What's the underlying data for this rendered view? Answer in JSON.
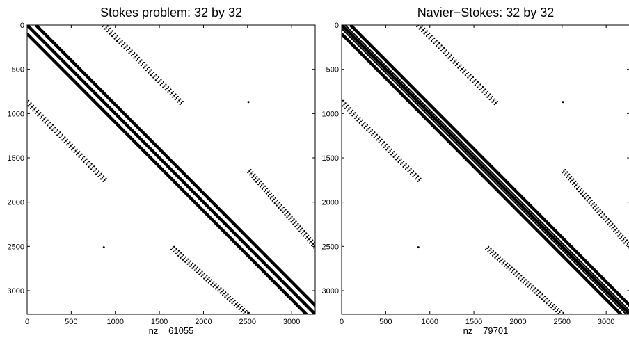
{
  "figure": {
    "background": "#ffffff",
    "mark_color": "#000000",
    "axes_color": "#000000"
  },
  "chart_data": [
    {
      "type": "spy",
      "title": "Stokes problem: 32 by 32",
      "xlabel": "nz = 61055",
      "ylabel": "",
      "n": 3267,
      "xlim": [
        0,
        3267
      ],
      "ylim": [
        3267,
        0
      ],
      "y_inverted": true,
      "xticks": [
        0,
        500,
        1000,
        1500,
        2000,
        2500,
        3000
      ],
      "yticks": [
        0,
        500,
        1000,
        1500,
        2000,
        2500,
        3000
      ],
      "grid": false,
      "nonzero_pattern": {
        "main_bands": [
          {
            "from": [
              0,
              0
            ],
            "to": [
              3267,
              3267
            ]
          },
          {
            "from": [
              0,
              100
            ],
            "to": [
              3267,
              3367
            ]
          },
          {
            "from": [
              100,
              0
            ],
            "to": [
              3367,
              3267
            ]
          }
        ],
        "dotted_blocks": [
          {
            "from": [
              870,
              0
            ],
            "to": [
              1750,
              880
            ]
          },
          {
            "from": [
              0,
              870
            ],
            "to": [
              880,
              1750
            ]
          },
          {
            "from": [
              1650,
              2520
            ],
            "to": [
              2500,
              3267
            ]
          },
          {
            "from": [
              2520,
              1650
            ],
            "to": [
              3267,
              2500
            ]
          }
        ],
        "isolated_points": [
          [
            870,
            2510
          ],
          [
            2510,
            870
          ]
        ]
      },
      "extra_asymmetric_bands": false
    },
    {
      "type": "spy",
      "title": "Navier−Stokes: 32 by 32",
      "xlabel": "nz = 79701",
      "ylabel": "",
      "n": 3267,
      "xlim": [
        0,
        3267
      ],
      "ylim": [
        3267,
        0
      ],
      "y_inverted": true,
      "xticks": [
        0,
        500,
        1000,
        1500,
        2000,
        2500,
        3000
      ],
      "yticks": [
        0,
        500,
        1000,
        1500,
        2000,
        2500,
        3000
      ],
      "grid": false,
      "nonzero_pattern": {
        "main_bands": [
          {
            "from": [
              0,
              0
            ],
            "to": [
              3267,
              3267
            ]
          },
          {
            "from": [
              0,
              100
            ],
            "to": [
              3267,
              3367
            ]
          },
          {
            "from": [
              100,
              0
            ],
            "to": [
              3367,
              3267
            ]
          }
        ],
        "dotted_blocks": [
          {
            "from": [
              870,
              0
            ],
            "to": [
              1750,
              880
            ]
          },
          {
            "from": [
              0,
              870
            ],
            "to": [
              880,
              1750
            ]
          },
          {
            "from": [
              1650,
              2520
            ],
            "to": [
              2500,
              3267
            ]
          },
          {
            "from": [
              2520,
              1650
            ],
            "to": [
              3267,
              2500
            ]
          }
        ],
        "isolated_points": [
          [
            870,
            2510
          ],
          [
            2510,
            870
          ]
        ]
      },
      "extra_asymmetric_bands": true
    }
  ]
}
